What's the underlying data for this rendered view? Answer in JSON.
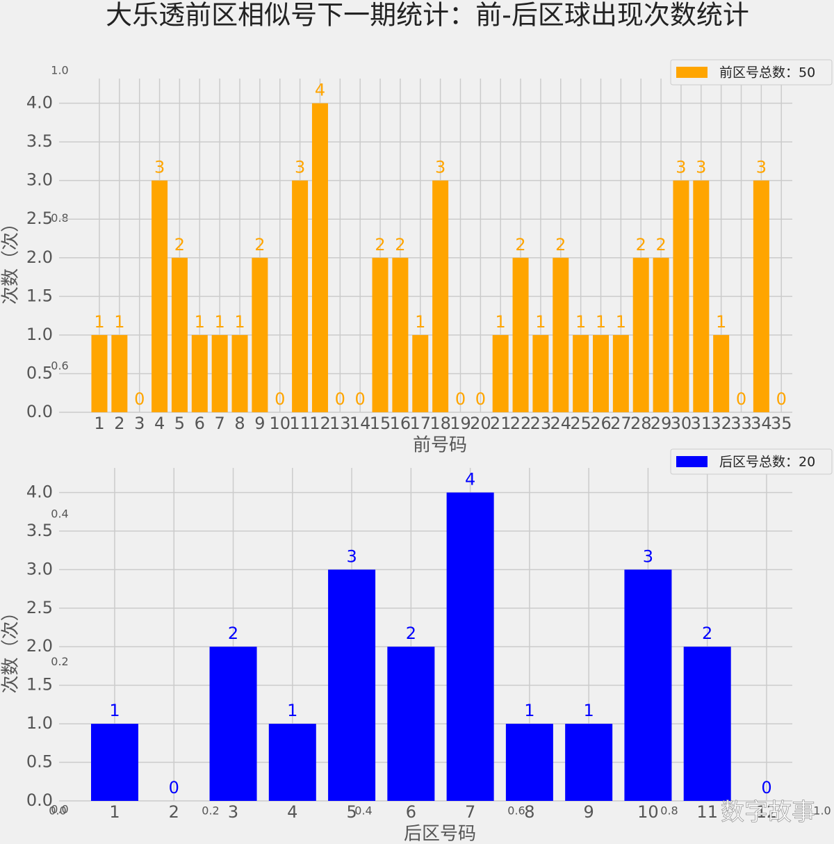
{
  "title": "大乐透前区相似号下一期统计：前-后区球出现次数统计",
  "watermark": "数字故事",
  "chart_data": [
    {
      "type": "axes",
      "xlim": [
        0,
        1
      ],
      "ylim": [
        0,
        1
      ],
      "xticks": [
        {
          "value": 0,
          "label": "0.0"
        },
        {
          "value": 0.2,
          "label": "0.2"
        },
        {
          "value": 0.4,
          "label": "0.4"
        },
        {
          "value": 0.6,
          "label": "0.6"
        },
        {
          "value": 0.8,
          "label": "0.8"
        },
        {
          "value": 1,
          "label": "1.0"
        }
      ],
      "yticks": [
        {
          "value": 0,
          "label": "0.0"
        },
        {
          "value": 0.2,
          "label": "0.2"
        },
        {
          "value": 0.4,
          "label": "0.4"
        },
        {
          "value": 0.6,
          "label": "0.6"
        },
        {
          "value": 0.8,
          "label": "0.8"
        },
        {
          "value": 1,
          "label": "1.0"
        }
      ]
    },
    {
      "type": "bar",
      "x_label": "前号码",
      "y_label": "次数（次）",
      "categories": [
        "1",
        "2",
        "3",
        "4",
        "5",
        "6",
        "7",
        "8",
        "9",
        "10",
        "11",
        "12",
        "13",
        "14",
        "15",
        "16",
        "17",
        "18",
        "19",
        "20",
        "21",
        "22",
        "23",
        "24",
        "25",
        "26",
        "27",
        "28",
        "29",
        "30",
        "31",
        "32",
        "33",
        "34",
        "35"
      ],
      "series": [
        {
          "name": "前区号总数：50",
          "color": "#ffa500",
          "values": [
            1,
            1,
            0,
            3,
            2,
            1,
            1,
            1,
            2,
            0,
            3,
            4,
            0,
            0,
            2,
            2,
            1,
            3,
            0,
            0,
            1,
            2,
            1,
            2,
            1,
            1,
            1,
            2,
            2,
            3,
            3,
            1,
            0,
            3,
            0
          ]
        }
      ],
      "ylim": [
        0,
        4.5
      ],
      "yticks": [
        {
          "value": 0,
          "label": "0.0"
        },
        {
          "value": 0.5,
          "label": "0.5"
        },
        {
          "value": 1,
          "label": "1.0"
        },
        {
          "value": 1.5,
          "label": "1.5"
        },
        {
          "value": 2,
          "label": "2.0"
        },
        {
          "value": 2.5,
          "label": "2.5"
        },
        {
          "value": 3,
          "label": "3.0"
        },
        {
          "value": 3.5,
          "label": "3.5"
        },
        {
          "value": 4,
          "label": "4.0"
        }
      ],
      "grid": true,
      "legend": "upper right"
    },
    {
      "type": "bar",
      "x_label": "后区号码",
      "y_label": "次数（次）",
      "categories": [
        "1",
        "2",
        "3",
        "4",
        "5",
        "6",
        "7",
        "8",
        "9",
        "10",
        "11",
        "12"
      ],
      "series": [
        {
          "name": "后区号总数：20",
          "color": "#0000ff",
          "values": [
            1,
            0,
            2,
            1,
            3,
            2,
            4,
            1,
            1,
            3,
            2,
            0
          ]
        }
      ],
      "ylim": [
        0,
        4.5
      ],
      "yticks": [
        {
          "value": 0,
          "label": "0.0"
        },
        {
          "value": 0.5,
          "label": "0.5"
        },
        {
          "value": 1,
          "label": "1.0"
        },
        {
          "value": 1.5,
          "label": "1.5"
        },
        {
          "value": 2,
          "label": "2.0"
        },
        {
          "value": 2.5,
          "label": "2.5"
        },
        {
          "value": 3,
          "label": "3.0"
        },
        {
          "value": 3.5,
          "label": "3.5"
        },
        {
          "value": 4,
          "label": "4.0"
        }
      ],
      "grid": true,
      "legend": "upper right"
    }
  ]
}
